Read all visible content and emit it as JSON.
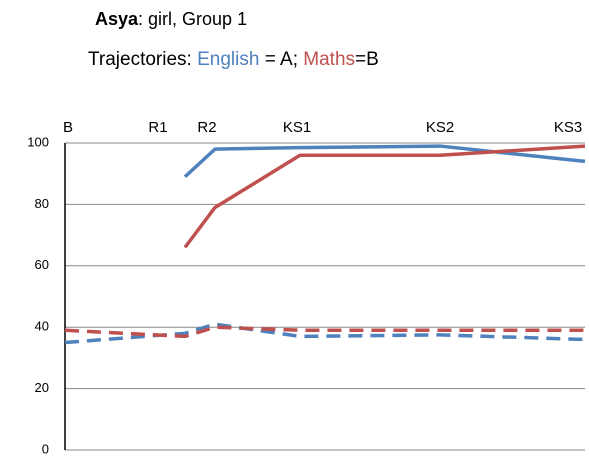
{
  "chart_data": {
    "type": "line",
    "title_parts": [
      "Asya",
      ": girl, Group 1"
    ],
    "subtitle_parts": [
      "Trajectories: ",
      "English",
      " = A; ",
      "Maths",
      "=B"
    ],
    "categories": [
      "B",
      "R1",
      "R2",
      "KS1",
      "KS2",
      "KS3"
    ],
    "series": [
      {
        "name": "English",
        "color": "#4f81bd",
        "values": [
          null,
          89,
          98,
          98.5,
          99,
          94
        ],
        "dashed_values": [
          35,
          38,
          41,
          37,
          37.5,
          36
        ]
      },
      {
        "name": "Maths",
        "color": "#c0504d",
        "values": [
          null,
          66,
          79,
          96,
          96,
          99
        ],
        "dashed_values": [
          39,
          37,
          40,
          39,
          39,
          39
        ]
      }
    ],
    "ylim": [
      0,
      100
    ],
    "yticks": [
      0,
      20,
      40,
      60,
      80,
      100
    ],
    "grid": true
  }
}
